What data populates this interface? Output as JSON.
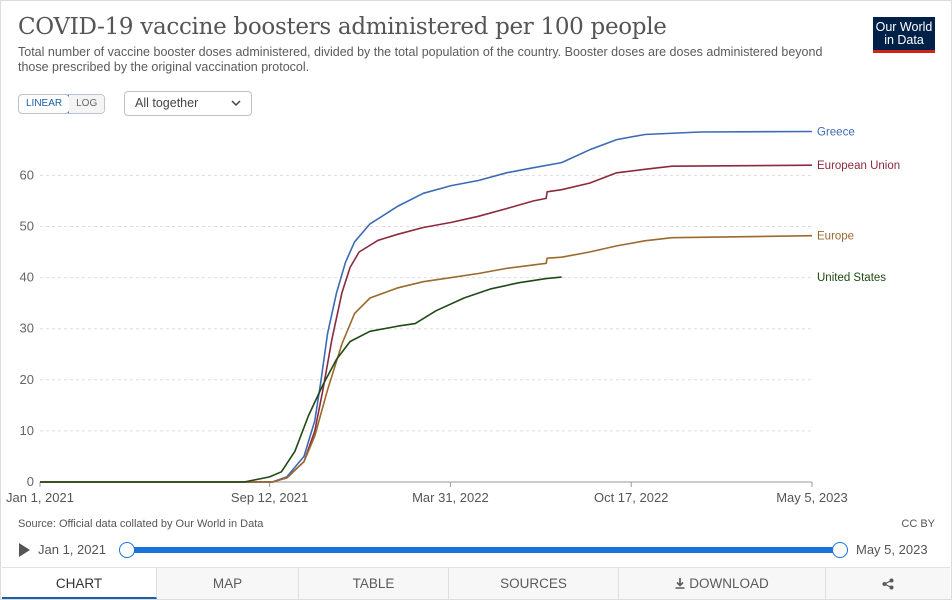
{
  "title": "COVID-19 vaccine boosters administered per 100 people",
  "subtitle": "Total number of vaccine booster doses administered, divided by the total population of the country. Booster doses are doses administered beyond those prescribed by the original vaccination protocol.",
  "logo": {
    "line1": "Our World",
    "line2": "in Data"
  },
  "controls": {
    "scale_linear": "LINEAR",
    "scale_log": "LOG",
    "scale_active": "LINEAR",
    "selector_value": "All together",
    "selector_icon": "chevron-down-icon"
  },
  "chart_data": {
    "type": "line",
    "title": "COVID-19 vaccine boosters administered per 100 people",
    "xlabel": "",
    "ylabel": "",
    "x_range": [
      "2021-01-01",
      "2023-05-05"
    ],
    "ylim": [
      0,
      70
    ],
    "y_ticks": [
      0,
      10,
      20,
      30,
      40,
      50,
      60
    ],
    "x_ticks": [
      {
        "date": "2021-01-01",
        "label": "Jan 1, 2021"
      },
      {
        "date": "2021-09-12",
        "label": "Sep 12, 2021"
      },
      {
        "date": "2022-03-31",
        "label": "Mar 31, 2022"
      },
      {
        "date": "2022-10-17",
        "label": "Oct 17, 2022"
      },
      {
        "date": "2023-05-05",
        "label": "May 5, 2023"
      }
    ],
    "grid": "horizontal dashed",
    "legend": "right, labels at line ends",
    "series": [
      {
        "name": "Greece",
        "color": "#3c6bb4",
        "points": [
          [
            "2021-01-01",
            0
          ],
          [
            "2021-09-15",
            0
          ],
          [
            "2021-10-01",
            1
          ],
          [
            "2021-10-20",
            5
          ],
          [
            "2021-11-01",
            12
          ],
          [
            "2021-11-08",
            20
          ],
          [
            "2021-11-15",
            29
          ],
          [
            "2021-11-25",
            37
          ],
          [
            "2021-12-05",
            43
          ],
          [
            "2021-12-15",
            47
          ],
          [
            "2022-01-01",
            50.5
          ],
          [
            "2022-02-01",
            54
          ],
          [
            "2022-03-01",
            56.5
          ],
          [
            "2022-04-01",
            58
          ],
          [
            "2022-05-01",
            59
          ],
          [
            "2022-06-01",
            60.5
          ],
          [
            "2022-07-01",
            61.5
          ],
          [
            "2022-08-01",
            62.5
          ],
          [
            "2022-09-01",
            65
          ],
          [
            "2022-10-01",
            67
          ],
          [
            "2022-11-01",
            68
          ],
          [
            "2023-01-01",
            68.5
          ],
          [
            "2023-05-05",
            68.6
          ]
        ]
      },
      {
        "name": "European Union",
        "color": "#8c2a3d",
        "points": [
          [
            "2021-01-01",
            0
          ],
          [
            "2021-09-15",
            0
          ],
          [
            "2021-10-01",
            0.8
          ],
          [
            "2021-10-20",
            4
          ],
          [
            "2021-11-01",
            10
          ],
          [
            "2021-11-10",
            18
          ],
          [
            "2021-11-20",
            28
          ],
          [
            "2021-12-01",
            37
          ],
          [
            "2021-12-10",
            42
          ],
          [
            "2021-12-20",
            45
          ],
          [
            "2022-01-10",
            47.3
          ],
          [
            "2022-02-01",
            48.5
          ],
          [
            "2022-03-01",
            49.8
          ],
          [
            "2022-04-01",
            50.8
          ],
          [
            "2022-05-01",
            52
          ],
          [
            "2022-06-01",
            53.5
          ],
          [
            "2022-07-01",
            55
          ],
          [
            "2022-07-15",
            55.5
          ],
          [
            "2022-07-16",
            56.8
          ],
          [
            "2022-08-01",
            57.2
          ],
          [
            "2022-09-01",
            58.5
          ],
          [
            "2022-10-01",
            60.5
          ],
          [
            "2022-11-01",
            61.2
          ],
          [
            "2022-12-01",
            61.8
          ],
          [
            "2023-05-05",
            62
          ]
        ]
      },
      {
        "name": "Europe",
        "color": "#9a6a2d",
        "points": [
          [
            "2021-01-01",
            0
          ],
          [
            "2021-09-15",
            0
          ],
          [
            "2021-10-01",
            0.8
          ],
          [
            "2021-10-20",
            4
          ],
          [
            "2021-11-01",
            9
          ],
          [
            "2021-11-15",
            18
          ],
          [
            "2021-12-01",
            27
          ],
          [
            "2021-12-15",
            33
          ],
          [
            "2022-01-01",
            36
          ],
          [
            "2022-02-01",
            38
          ],
          [
            "2022-03-01",
            39.2
          ],
          [
            "2022-04-01",
            40
          ],
          [
            "2022-05-01",
            40.8
          ],
          [
            "2022-06-01",
            41.8
          ],
          [
            "2022-07-15",
            42.8
          ],
          [
            "2022-07-16",
            43.8
          ],
          [
            "2022-08-01",
            44
          ],
          [
            "2022-09-01",
            45
          ],
          [
            "2022-10-01",
            46.2
          ],
          [
            "2022-11-01",
            47.2
          ],
          [
            "2022-12-01",
            47.8
          ],
          [
            "2023-05-05",
            48.2
          ]
        ]
      },
      {
        "name": "United States",
        "color": "#1f4a14",
        "points": [
          [
            "2021-01-01",
            0
          ],
          [
            "2021-08-15",
            0
          ],
          [
            "2021-09-12",
            1
          ],
          [
            "2021-09-25",
            2
          ],
          [
            "2021-10-10",
            6
          ],
          [
            "2021-10-25",
            13
          ],
          [
            "2021-11-10",
            19
          ],
          [
            "2021-11-25",
            24
          ],
          [
            "2021-12-10",
            27.5
          ],
          [
            "2022-01-01",
            29.5
          ],
          [
            "2022-02-01",
            30.5
          ],
          [
            "2022-02-20",
            31
          ],
          [
            "2022-03-15",
            33.5
          ],
          [
            "2022-04-15",
            36
          ],
          [
            "2022-05-15",
            37.8
          ],
          [
            "2022-06-15",
            39
          ],
          [
            "2022-07-15",
            39.8
          ],
          [
            "2022-08-01",
            40.1
          ]
        ]
      }
    ]
  },
  "source": "Source: Official data collated by Our World in Data",
  "license": "CC BY",
  "timeline": {
    "start": "Jan 1, 2021",
    "end": "May 5, 2023",
    "play_icon": "play-icon"
  },
  "tabs": [
    {
      "label": "CHART",
      "active": true
    },
    {
      "label": "MAP"
    },
    {
      "label": "TABLE"
    },
    {
      "label": "SOURCES"
    },
    {
      "label": "DOWNLOAD",
      "icon": "download-icon"
    },
    {
      "label": "",
      "icon": "share-icon"
    }
  ]
}
